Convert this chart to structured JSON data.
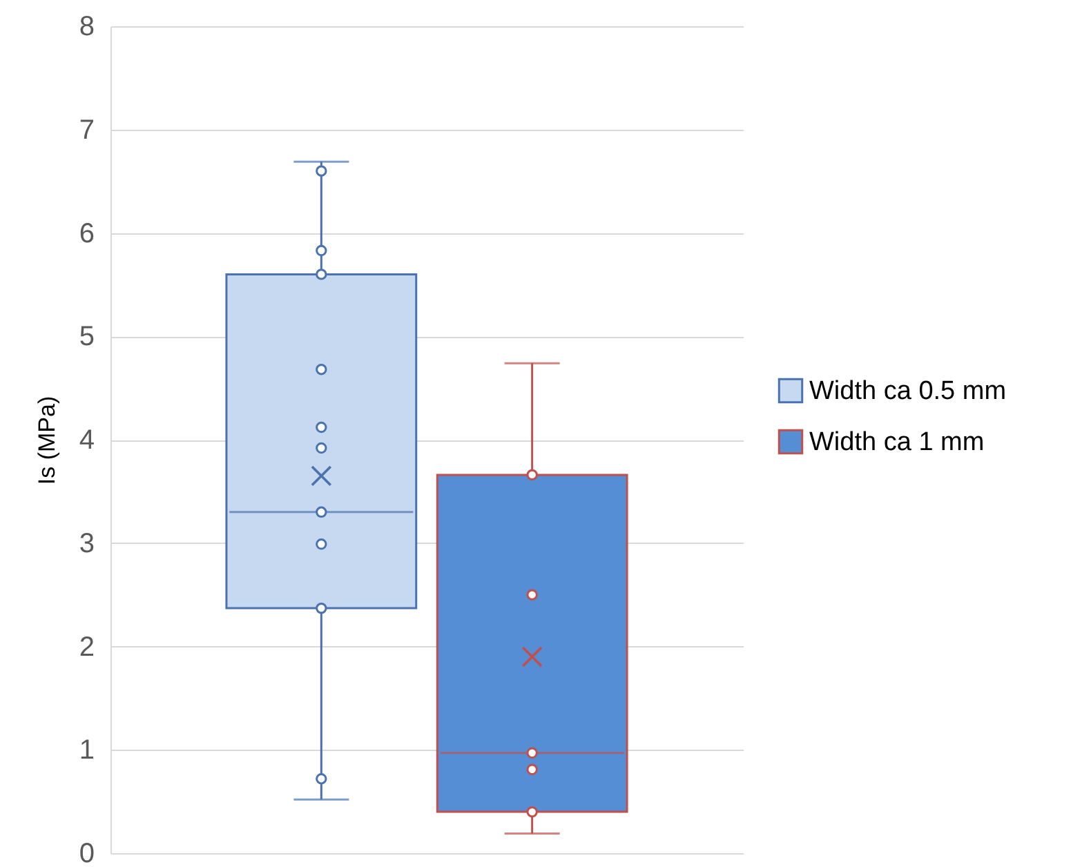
{
  "chart_data": {
    "type": "box",
    "ylabel": "Is (MPa)",
    "categories": [
      null
    ],
    "series": [
      {
        "name": "Width ca 0.5 mm",
        "color": "#c6d9f0",
        "boxes": [
          {
            "low": 0.52,
            "q1": 2.37,
            "median": 3.3,
            "q3": 5.6,
            "high": 6.69,
            "mean": 3.65
          }
        ]
      },
      {
        "name": "Width ca 1 mm",
        "color": "#558ed5",
        "boxes": [
          {
            "low": 0.19,
            "q1": 0.4,
            "median": 0.97,
            "q3": 3.66,
            "high": 4.74,
            "mean": 1.9
          }
        ]
      },
      {
        "type": "scatter",
        "color": "#4a72b0",
        "x": [
          null,
          null,
          null,
          null,
          null,
          null,
          null,
          null,
          null,
          null
        ],
        "values": [
          6.6,
          5.83,
          5.6,
          4.68,
          4.12,
          3.92,
          3.3,
          2.99,
          2.37,
          0.72
        ]
      },
      {
        "type": "scatter",
        "color": "#c0504d",
        "x": [
          null,
          null,
          null,
          null,
          null
        ],
        "values": [
          3.66,
          2.5,
          0.97,
          0.81,
          0.4
        ]
      }
    ],
    "ylim": [
      0,
      8
    ],
    "yticks": [
      0,
      1,
      2,
      3,
      4,
      5,
      6,
      7,
      8
    ],
    "grid": "y",
    "legend": "right",
    "marker": "circle"
  }
}
